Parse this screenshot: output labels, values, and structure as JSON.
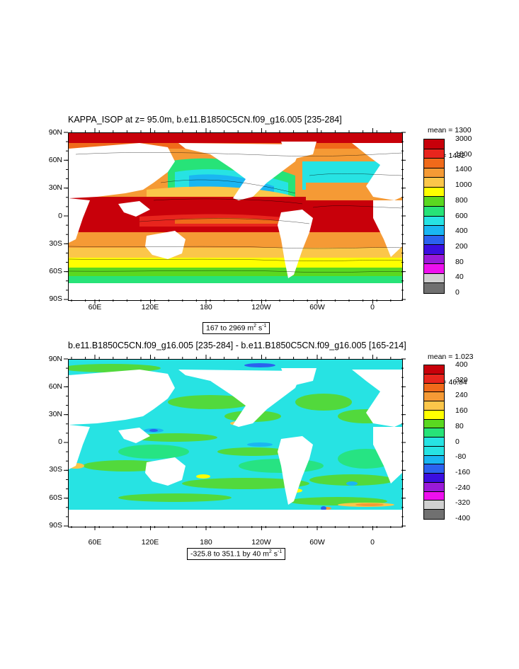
{
  "panels": [
    {
      "title": "KAPPA_ISOP at z=  95.0m, b.e11.B1850C5CN.f09_g16.005 [235-284]",
      "stats_mean": "mean = 1300",
      "stats_rms": "rms = 1432",
      "range_text": "167 to 2969 m",
      "range_unit_exp1": "2",
      "range_unit_mid": " s",
      "range_unit_exp2": "-1",
      "lat_labels": [
        "90N",
        "60N",
        "30N",
        "0",
        "30S",
        "60S",
        "90S"
      ],
      "lon_labels": [
        "60E",
        "120E",
        "180",
        "120W",
        "60W",
        "0"
      ],
      "colorbar": {
        "colors": [
          "#c8000a",
          "#e8251d",
          "#f06a1a",
          "#f59a35",
          "#fbc64a",
          "#ffff00",
          "#5ad820",
          "#27e378",
          "#27e3e3",
          "#1ab6f2",
          "#2b62ef",
          "#3b0ee0",
          "#9a1ad8",
          "#ee10ee",
          "#d0d0d0",
          "#707070"
        ],
        "labels": [
          "3000",
          "1800",
          "1400",
          "1000",
          "800",
          "600",
          "400",
          "200",
          "80",
          "40",
          "0"
        ]
      }
    },
    {
      "title": "b.e11.B1850C5CN.f09_g16.005 [235-284] - b.e11.B1850C5CN.f09_g16.005 [165-214]",
      "stats_mean": "mean = 1.023",
      "stats_rms": "rms = 46.84",
      "range_text": "-325.8 to 351.1 by 40 m",
      "range_unit_exp1": "2",
      "range_unit_mid": " s",
      "range_unit_exp2": "-1",
      "lat_labels": [
        "90N",
        "60N",
        "30N",
        "0",
        "30S",
        "60S",
        "90S"
      ],
      "lon_labels": [
        "60E",
        "120E",
        "180",
        "120W",
        "60W",
        "0"
      ],
      "colorbar": {
        "colors": [
          "#c8000a",
          "#e8251d",
          "#f06a1a",
          "#f59a35",
          "#fbc64a",
          "#ffff00",
          "#5ad820",
          "#27e378",
          "#27e3e3",
          "#27e3e3",
          "#1ab6f2",
          "#2b62ef",
          "#3b0ee0",
          "#9a1ad8",
          "#ee10ee",
          "#d0d0d0",
          "#707070"
        ],
        "labels": [
          "400",
          "320",
          "240",
          "160",
          "80",
          "0",
          "-80",
          "-160",
          "-240",
          "-320",
          "-400"
        ]
      }
    }
  ]
}
